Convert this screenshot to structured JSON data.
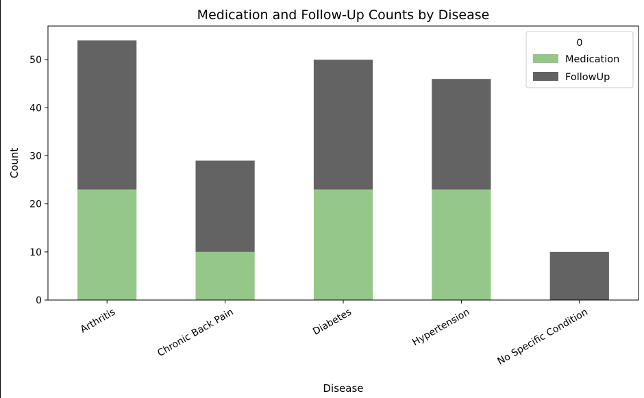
{
  "chart_data": {
    "type": "bar",
    "stacked": true,
    "title": "Medication and Follow-Up Counts by Disease",
    "xlabel": "Disease",
    "ylabel": "Count",
    "categories": [
      "Arthritis",
      "Chronic Back Pain",
      "Diabetes",
      "Hypertension",
      "No Specific Condition"
    ],
    "series": [
      {
        "name": "Medication",
        "values": [
          23,
          10,
          23,
          23,
          0
        ],
        "color": "#95c888"
      },
      {
        "name": "FollowUp",
        "values": [
          31,
          19,
          27,
          23,
          10
        ],
        "color": "#636363"
      }
    ],
    "ylim": [
      0,
      57
    ],
    "yticks": [
      0,
      10,
      20,
      30,
      40,
      50
    ],
    "legend": {
      "title": "0",
      "position": "top-right"
    },
    "grid": false
  }
}
